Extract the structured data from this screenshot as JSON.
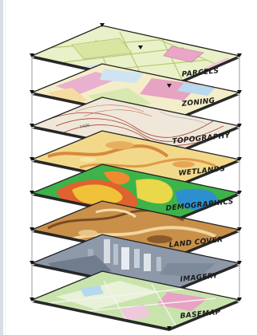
{
  "diagram": {
    "layers": [
      {
        "key": "parcels",
        "label": "PARCELS",
        "base": "#e8f0c4",
        "accent": "#c9d98a"
      },
      {
        "key": "zoning",
        "label": "ZONING",
        "base": "#f3ecc8",
        "accent": "#e7a8c8"
      },
      {
        "key": "topography",
        "label": "TOPOGRAPHY",
        "base": "#efe7d9",
        "accent": "#9a3a2a",
        "contour_text": "7400"
      },
      {
        "key": "wetlands",
        "label": "WETLANDS",
        "base": "#f0d27a",
        "accent": "#d98a3a"
      },
      {
        "key": "demographics",
        "label": "DEMOGRAPHICS",
        "base": "#3fb24a",
        "accent": "#e0552e"
      },
      {
        "key": "landcover",
        "label": "LAND COVER",
        "base": "#c98f4a",
        "accent": "#7a4a22"
      },
      {
        "key": "imagery",
        "label": "IMAGERY",
        "base": "#8a97a8",
        "accent": "#e8ecf2"
      },
      {
        "key": "basemap",
        "label": "BASEMAP",
        "base": "#c5e2a8",
        "accent": "#e79bc1"
      }
    ]
  }
}
